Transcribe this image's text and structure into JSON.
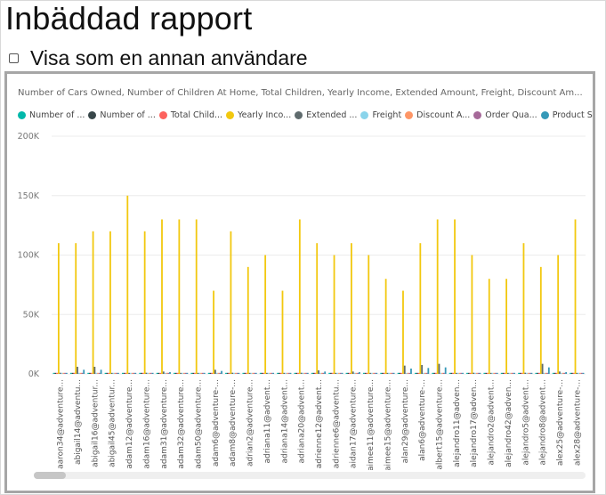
{
  "page": {
    "title": "Inbäddad rapport"
  },
  "view_as": {
    "label": "Visa som en annan användare"
  },
  "chart_data": {
    "type": "bar",
    "title": "Number of Cars Owned, Number of Children At Home, Total Children, Yearly Income, Extended Amount, Freight, Discount Am...",
    "legend_position": "top-left",
    "grid": true,
    "ylim": [
      0,
      200000
    ],
    "yticks": [
      {
        "value": 0,
        "label": "0K"
      },
      {
        "value": 50000,
        "label": "50K"
      },
      {
        "value": 100000,
        "label": "100K"
      },
      {
        "value": 150000,
        "label": "150K"
      },
      {
        "value": 200000,
        "label": "200K"
      }
    ],
    "categories": [
      "aaron34@adventure...",
      "abigail14@adventu...",
      "abigail16@adventur...",
      "abigail45@adventur...",
      "adam12@adventure...",
      "adam16@adventure...",
      "adam31@adventure...",
      "adam32@adventure...",
      "adam50@adventure...",
      "adam6@adventure-...",
      "adam8@adventure-...",
      "adrian2@adventure...",
      "adriana11@advent...",
      "adriana14@advent...",
      "adriana20@advent...",
      "adrienne12@advent...",
      "adrienne6@adventu...",
      "aidan17@adventure...",
      "aimee11@adventure...",
      "aimee15@adventure...",
      "alan29@adventure...",
      "alan6@adventure-...",
      "albert15@adventure...",
      "alejandro11@adven...",
      "alejandro17@adven...",
      "alejandro2@advent...",
      "alejandro42@adven...",
      "alejandro5@advent...",
      "alejandro8@advent...",
      "alex25@adventure-...",
      "alex28@adventure-..."
    ],
    "series": [
      {
        "name": "Number of ...",
        "color": "#01b8aa",
        "values": [
          2,
          1,
          1,
          1,
          0,
          2,
          4,
          2,
          2,
          2,
          1,
          1,
          1,
          2,
          2,
          4,
          2,
          1,
          1,
          2,
          0,
          2,
          2,
          0,
          0,
          2,
          1,
          2,
          1,
          2,
          1
        ]
      },
      {
        "name": "Number of ...",
        "color": "#374649",
        "values": [
          0,
          0,
          0,
          0,
          0,
          0,
          0,
          0,
          0,
          0,
          0,
          0,
          0,
          0,
          0,
          0,
          0,
          0,
          0,
          0,
          0,
          0,
          0,
          0,
          0,
          0,
          0,
          0,
          0,
          0,
          0
        ]
      },
      {
        "name": "Total Child...",
        "color": "#fd625e",
        "values": [
          1,
          3,
          0,
          0,
          2,
          1,
          5,
          2,
          1,
          0,
          0,
          1,
          0,
          2,
          3,
          3,
          0,
          0,
          0,
          3,
          0,
          1,
          2,
          1,
          2,
          0,
          4,
          0,
          1,
          1,
          0
        ]
      },
      {
        "name": "Yearly Inco...",
        "color": "#f2c80f",
        "values": [
          110000,
          110000,
          120000,
          120000,
          150000,
          120000,
          130000,
          130000,
          130000,
          70000,
          120000,
          90000,
          100000,
          70000,
          130000,
          110000,
          100000,
          110000,
          100000,
          80000,
          70000,
          110000,
          130000,
          130000,
          100000,
          80000,
          80000,
          110000,
          90000,
          100000,
          130000
        ]
      },
      {
        "name": "Extended ...",
        "color": "#5f6b6d",
        "values": [
          1000,
          6000,
          6000,
          600,
          800,
          1000,
          2000,
          600,
          800,
          3500,
          1000,
          600,
          800,
          600,
          1000,
          3000,
          800,
          2000,
          700,
          600,
          7000,
          7500,
          8500,
          800,
          1000,
          600,
          800,
          1000,
          8500,
          2000,
          600
        ]
      },
      {
        "name": "Freight",
        "color": "#8ad4eb",
        "values": [
          30,
          150,
          150,
          15,
          20,
          30,
          50,
          15,
          20,
          90,
          25,
          15,
          20,
          15,
          25,
          75,
          20,
          50,
          18,
          15,
          175,
          190,
          210,
          20,
          25,
          15,
          20,
          25,
          210,
          50,
          15
        ]
      },
      {
        "name": "Discount A...",
        "color": "#fe9666",
        "values": [
          0,
          0,
          0,
          0,
          0,
          0,
          0,
          0,
          0,
          0,
          0,
          0,
          0,
          0,
          0,
          0,
          0,
          0,
          0,
          0,
          0,
          0,
          0,
          0,
          0,
          0,
          0,
          0,
          0,
          0,
          0
        ]
      },
      {
        "name": "Order Qua...",
        "color": "#a66999",
        "values": [
          1,
          2,
          2,
          1,
          1,
          1,
          2,
          1,
          1,
          2,
          1,
          1,
          1,
          1,
          1,
          2,
          1,
          2,
          1,
          1,
          3,
          3,
          3,
          1,
          1,
          1,
          1,
          1,
          3,
          2,
          1
        ]
      },
      {
        "name": "Product St...",
        "color": "#3599b8",
        "values": [
          800,
          3500,
          3500,
          400,
          600,
          800,
          1500,
          400,
          600,
          2500,
          800,
          400,
          600,
          400,
          800,
          2000,
          600,
          1500,
          500,
          400,
          4500,
          5000,
          5500,
          600,
          800,
          400,
          600,
          800,
          5500,
          1500,
          400
        ]
      }
    ]
  },
  "colors": {
    "report_border": "#a6a6a6",
    "grid": "#ececec",
    "axis_text": "#777777"
  }
}
